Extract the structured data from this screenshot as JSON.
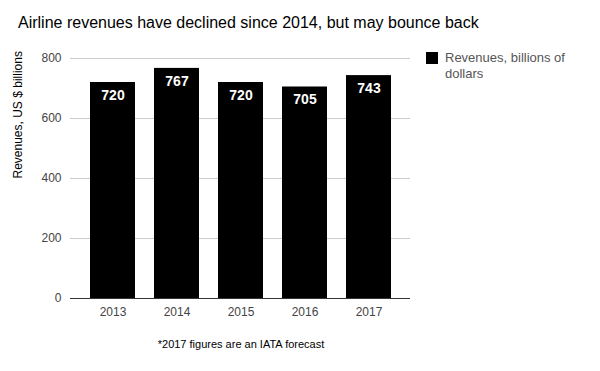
{
  "chart_data": {
    "type": "bar",
    "title": "Airline revenues have declined since 2014, but may bounce back",
    "y_label": "Revenues, US $ billions",
    "caption": "*2017 figures are an IATA forecast",
    "categories": [
      "2013",
      "2014",
      "2015",
      "2016",
      "2017"
    ],
    "series": [
      {
        "name": "Revenues, billions of dollars",
        "color": "#000000",
        "values": [
          720,
          767,
          720,
          705,
          743
        ]
      }
    ],
    "ylim": [
      0,
      800
    ],
    "yticks": [
      0,
      200,
      400,
      600,
      800
    ],
    "grid": true,
    "data_labels": true,
    "legend": "right"
  }
}
